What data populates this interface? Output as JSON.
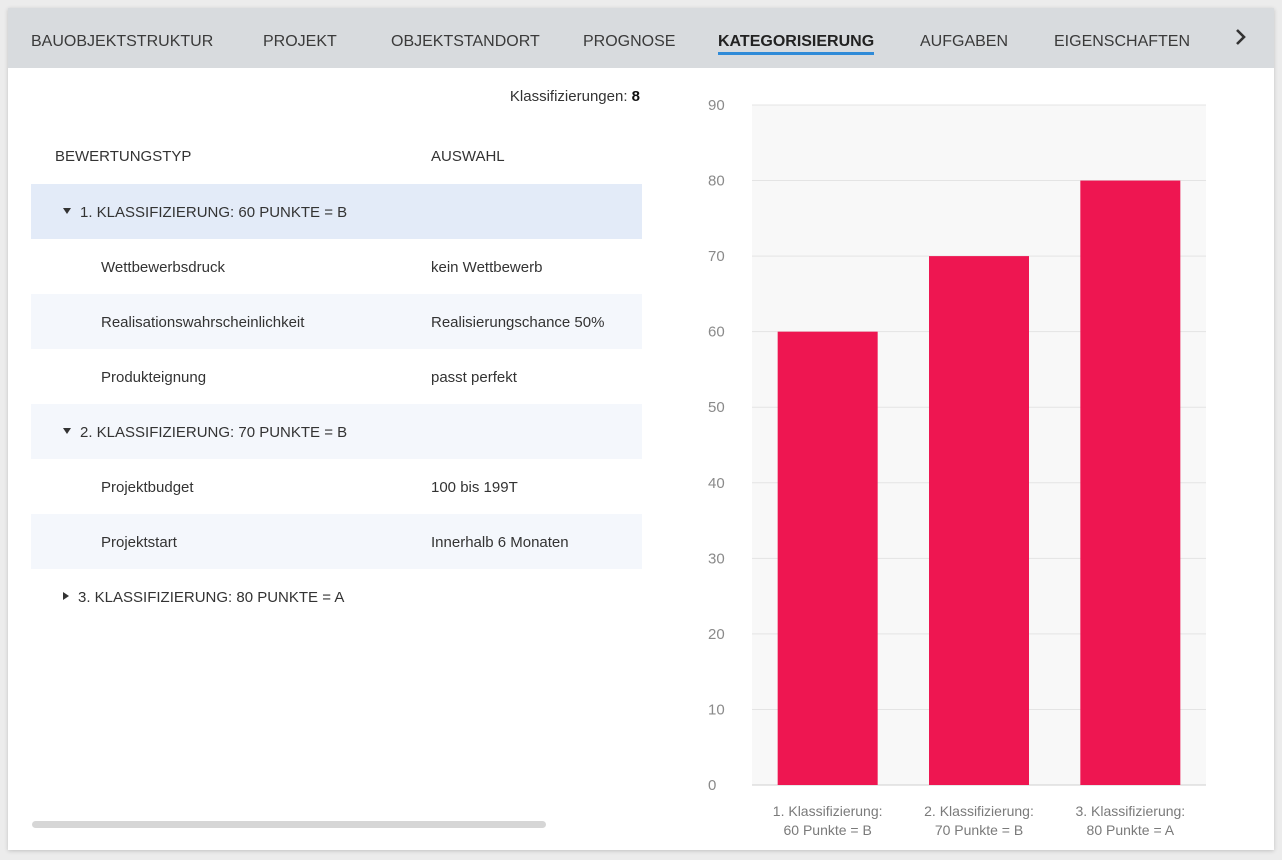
{
  "tabs": [
    {
      "label": "BAUOBJEKTSTRUKTUR",
      "active": false
    },
    {
      "label": "PROJEKT",
      "active": false
    },
    {
      "label": "OBJEKTSTANDORT",
      "active": false
    },
    {
      "label": "PROGNOSE",
      "active": false
    },
    {
      "label": "KATEGORISIERUNG",
      "active": true
    },
    {
      "label": "AUFGABEN",
      "active": false
    },
    {
      "label": "EIGENSCHAFTEN",
      "active": false
    }
  ],
  "icons": {
    "tab_next": "chevron-right-icon",
    "expanded": "caret-down-icon",
    "collapsed": "caret-right-icon"
  },
  "summary": {
    "label": "Klassifizierungen:",
    "count": "8"
  },
  "table": {
    "columns": [
      "BEWERTUNGSTYP",
      "AUSWAHL"
    ],
    "groups": [
      {
        "label": "1. KLASSIFIZIERUNG: 60 PUNKTE = B",
        "expanded": true,
        "items": [
          {
            "type": "Wettbewerbsdruck",
            "value": "kein Wettbewerb"
          },
          {
            "type": "Realisationswahrscheinlichkeit",
            "value": "Realisierungschance 50%"
          },
          {
            "type": "Produkteignung",
            "value": "passt perfekt"
          }
        ]
      },
      {
        "label": "2. KLASSIFIZIERUNG: 70 PUNKTE = B",
        "expanded": true,
        "items": [
          {
            "type": "Projektbudget",
            "value": "100 bis 199T"
          },
          {
            "type": "Projektstart",
            "value": "Innerhalb 6 Monaten"
          }
        ]
      },
      {
        "label": "3. KLASSIFIZIERUNG: 80 PUNKTE = A",
        "expanded": false,
        "items": []
      }
    ]
  },
  "colors": {
    "bar": "#ee1651",
    "selected_row": "#e3ebf8",
    "alt_row": "#f4f7fc",
    "tab_underline": "#2f8bd8",
    "tabbar": "#d8dbde"
  },
  "chart_data": {
    "type": "bar",
    "categories": [
      [
        "1. Klassifizierung:",
        "60 Punkte = B"
      ],
      [
        "2. Klassifizierung:",
        "70 Punkte = B"
      ],
      [
        "3. Klassifizierung:",
        "80 Punkte = A"
      ]
    ],
    "values": [
      60,
      70,
      80
    ],
    "ylim": [
      0,
      90
    ],
    "yticks": [
      0,
      10,
      20,
      30,
      40,
      50,
      60,
      70,
      80,
      90
    ],
    "grid": true,
    "legend": "none"
  }
}
